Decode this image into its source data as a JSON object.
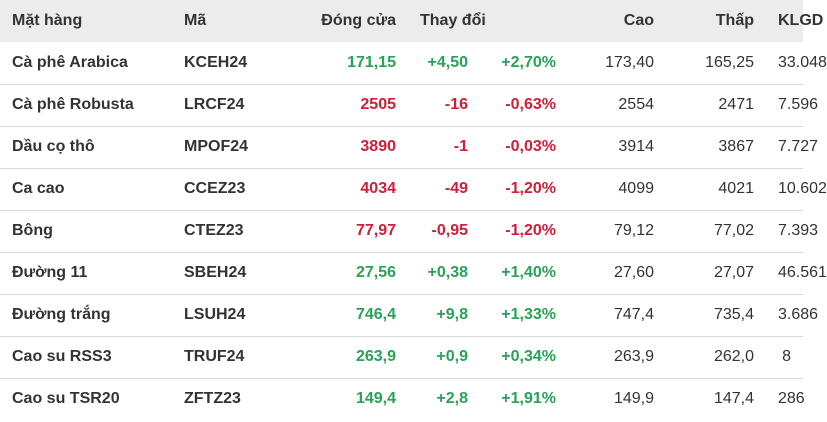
{
  "headers": {
    "name": "Mặt hàng",
    "code": "Mã",
    "close": "Đóng cửa",
    "change": "Thay đổi",
    "high": "Cao",
    "low": "Thấp",
    "volume": "KLGD"
  },
  "colors": {
    "up": "#27a356",
    "down": "#d41c38"
  },
  "rows": [
    {
      "name": "Cà phê Arabica",
      "code": "KCEH24",
      "close": "171,15",
      "change": "+4,50",
      "pct": "+2,70%",
      "high": "173,40",
      "low": "165,25",
      "volume": "33.048",
      "trend": "up"
    },
    {
      "name": "Cà phê Robusta",
      "code": "LRCF24",
      "close": "2505",
      "change": "-16",
      "pct": "-0,63%",
      "high": "2554",
      "low": "2471",
      "volume": "7.596",
      "trend": "down"
    },
    {
      "name": "Dầu cọ thô",
      "code": "MPOF24",
      "close": "3890",
      "change": "-1",
      "pct": "-0,03%",
      "high": "3914",
      "low": "3867",
      "volume": "7.727",
      "trend": "down"
    },
    {
      "name": "Ca cao",
      "code": "CCEZ23",
      "close": "4034",
      "change": "-49",
      "pct": "-1,20%",
      "high": "4099",
      "low": "4021",
      "volume": "10.602",
      "trend": "down"
    },
    {
      "name": "Bông",
      "code": "CTEZ23",
      "close": "77,97",
      "change": "-0,95",
      "pct": "-1,20%",
      "high": "79,12",
      "low": "77,02",
      "volume": "7.393",
      "trend": "down"
    },
    {
      "name": "Đường 11",
      "code": "SBEH24",
      "close": "27,56",
      "change": "+0,38",
      "pct": "+1,40%",
      "high": "27,60",
      "low": "27,07",
      "volume": "46.561",
      "trend": "up"
    },
    {
      "name": "Đường trắng",
      "code": "LSUH24",
      "close": "746,4",
      "change": "+9,8",
      "pct": "+1,33%",
      "high": "747,4",
      "low": "735,4",
      "volume": "3.686",
      "trend": "up"
    },
    {
      "name": "Cao su RSS3",
      "code": "TRUF24",
      "close": "263,9",
      "change": "+0,9",
      "pct": "+0,34%",
      "high": "263,9",
      "low": "262,0",
      "volume": "8",
      "trend": "up"
    },
    {
      "name": "Cao su TSR20",
      "code": "ZFTZ23",
      "close": "149,4",
      "change": "+2,8",
      "pct": "+1,91%",
      "high": "149,9",
      "low": "147,4",
      "volume": "286",
      "trend": "up"
    }
  ]
}
